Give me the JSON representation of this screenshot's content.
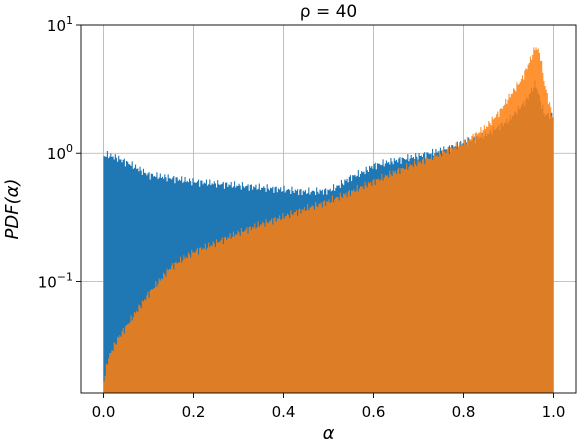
{
  "chart_data": {
    "type": "histogram",
    "title": "ρ = 40",
    "xlabel": "α",
    "ylabel": "PDF(α)",
    "xlim": [
      -0.05,
      1.05
    ],
    "ylim": [
      0.0135,
      10
    ],
    "yscale": "log",
    "grid": true,
    "legend": "none",
    "x_ticks": [
      {
        "value": 0.0,
        "label": "0.0"
      },
      {
        "value": 0.2,
        "label": "0.2"
      },
      {
        "value": 0.4,
        "label": "0.4"
      },
      {
        "value": 0.6,
        "label": "0.6"
      },
      {
        "value": 0.8,
        "label": "0.8"
      },
      {
        "value": 1.0,
        "label": "1.0"
      }
    ],
    "y_ticks": [
      {
        "value": 0.1,
        "base": "10",
        "exp": "−1"
      },
      {
        "value": 1,
        "base": "10",
        "exp": "0"
      },
      {
        "value": 10,
        "base": "10",
        "exp": "1"
      }
    ],
    "series": [
      {
        "color": "#1f77b4",
        "x": [
          0.0,
          0.01,
          0.03,
          0.06,
          0.1,
          0.15,
          0.2,
          0.25,
          0.3,
          0.35,
          0.4,
          0.45,
          0.5,
          0.52,
          0.55,
          0.58,
          0.6,
          0.65,
          0.7,
          0.75,
          0.8,
          0.85,
          0.9,
          0.94,
          0.96,
          0.98,
          1.0
        ],
        "values": [
          0.95,
          0.97,
          0.92,
          0.82,
          0.68,
          0.64,
          0.6,
          0.58,
          0.56,
          0.54,
          0.52,
          0.5,
          0.51,
          0.55,
          0.65,
          0.72,
          0.8,
          0.88,
          0.95,
          1.05,
          1.2,
          1.4,
          1.8,
          2.6,
          3.5,
          2.0,
          2.0
        ]
      },
      {
        "color": "#ff7f0e",
        "x": [
          0.0,
          0.01,
          0.03,
          0.06,
          0.1,
          0.15,
          0.2,
          0.25,
          0.3,
          0.35,
          0.4,
          0.45,
          0.5,
          0.55,
          0.6,
          0.65,
          0.7,
          0.75,
          0.8,
          0.85,
          0.88,
          0.9,
          0.93,
          0.95,
          0.96,
          0.97,
          0.98,
          1.0
        ],
        "values": [
          0.016,
          0.025,
          0.035,
          0.05,
          0.08,
          0.13,
          0.17,
          0.2,
          0.24,
          0.28,
          0.32,
          0.37,
          0.42,
          0.5,
          0.6,
          0.72,
          0.85,
          1.0,
          1.2,
          1.6,
          2.1,
          2.7,
          3.8,
          5.5,
          6.8,
          6.0,
          3.5,
          1.8
        ]
      }
    ]
  }
}
